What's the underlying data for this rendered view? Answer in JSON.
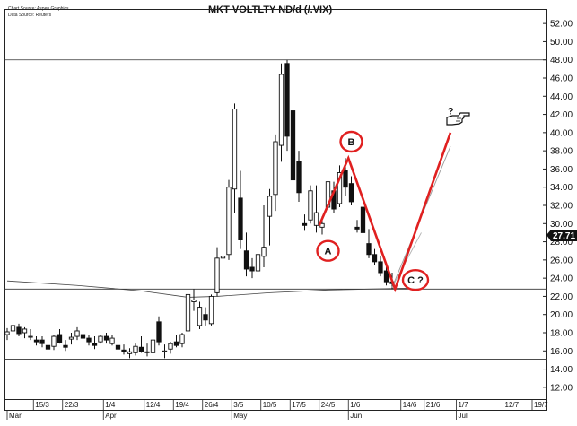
{
  "chart_data": {
    "type": "candlestick",
    "title": "MKT VOLTLTY ND/d (/.VIX)",
    "source_lines": [
      "Chart Source: Aspen Graphics",
      "Data Source: Reuters"
    ],
    "ylim": [
      11,
      53
    ],
    "y_ticks": [
      "12.00",
      "14.00",
      "16.00",
      "18.00",
      "20.00",
      "22.00",
      "24.00",
      "26.00",
      "28.00",
      "30.00",
      "32.00",
      "34.00",
      "36.00",
      "38.00",
      "40.00",
      "42.00",
      "44.00",
      "46.00",
      "48.00",
      "50.00",
      "52.00"
    ],
    "x_tick_labels": [
      "15/3",
      "22/3",
      "1/4",
      "12/4",
      "19/4",
      "26/4",
      "3/5",
      "10/5",
      "17/5",
      "24/5",
      "1/6",
      "14/6",
      "21/6",
      "1/7",
      "12/7",
      "19/7"
    ],
    "x_tick_bars": [
      4.5,
      9.5,
      16.5,
      23.5,
      28.5,
      33.5,
      38.5,
      43.5,
      48.5,
      53.5,
      58.5,
      67.5,
      71.5,
      77,
      85,
      90
    ],
    "months": [
      {
        "label": "Mar",
        "bar": 0
      },
      {
        "label": "Apr",
        "bar": 16.5
      },
      {
        "label": "May",
        "bar": 38.5
      },
      {
        "label": "Jun",
        "bar": 58.5
      },
      {
        "label": "Jul",
        "bar": 77
      }
    ],
    "horizontal_lines": [
      48.0,
      22.8,
      15.1
    ],
    "last_price": "27.71",
    "bars_span": 93,
    "candles": [
      {
        "o": 17.8,
        "h": 18.5,
        "l": 17.2,
        "c": 18.1
      },
      {
        "o": 18.2,
        "h": 19.2,
        "l": 18.0,
        "c": 18.8
      },
      {
        "o": 18.6,
        "h": 19.0,
        "l": 17.6,
        "c": 17.9
      },
      {
        "o": 18.0,
        "h": 18.6,
        "l": 17.4,
        "c": 18.4
      },
      {
        "o": 17.6,
        "h": 18.4,
        "l": 17.2,
        "c": 17.6
      },
      {
        "o": 17.2,
        "h": 17.6,
        "l": 16.6,
        "c": 17.0
      },
      {
        "o": 17.2,
        "h": 17.6,
        "l": 16.4,
        "c": 16.8
      },
      {
        "o": 16.6,
        "h": 17.2,
        "l": 16.0,
        "c": 16.2
      },
      {
        "o": 16.5,
        "h": 17.8,
        "l": 16.1,
        "c": 17.6
      },
      {
        "o": 17.8,
        "h": 18.4,
        "l": 16.8,
        "c": 16.9
      },
      {
        "o": 16.6,
        "h": 17.2,
        "l": 16.0,
        "c": 16.4
      },
      {
        "o": 17.3,
        "h": 18.0,
        "l": 16.7,
        "c": 17.5
      },
      {
        "o": 17.6,
        "h": 18.6,
        "l": 17.2,
        "c": 18.2
      },
      {
        "o": 17.8,
        "h": 18.4,
        "l": 17.2,
        "c": 17.4
      },
      {
        "o": 17.4,
        "h": 17.8,
        "l": 16.6,
        "c": 17.0
      },
      {
        "o": 16.8,
        "h": 17.6,
        "l": 16.2,
        "c": 16.6
      },
      {
        "o": 17.0,
        "h": 17.8,
        "l": 16.8,
        "c": 17.6
      },
      {
        "o": 17.6,
        "h": 18.0,
        "l": 16.8,
        "c": 17.2
      },
      {
        "o": 16.8,
        "h": 17.8,
        "l": 16.6,
        "c": 17.4
      },
      {
        "o": 16.6,
        "h": 17.0,
        "l": 15.9,
        "c": 16.2
      },
      {
        "o": 16.1,
        "h": 16.7,
        "l": 15.6,
        "c": 15.9
      },
      {
        "o": 15.7,
        "h": 16.3,
        "l": 15.2,
        "c": 15.9
      },
      {
        "o": 15.8,
        "h": 16.8,
        "l": 15.5,
        "c": 16.5
      },
      {
        "o": 16.4,
        "h": 17.6,
        "l": 15.8,
        "c": 15.9
      },
      {
        "o": 15.9,
        "h": 16.8,
        "l": 15.4,
        "c": 15.8
      },
      {
        "o": 15.8,
        "h": 17.4,
        "l": 15.6,
        "c": 17.2
      },
      {
        "o": 19.2,
        "h": 19.8,
        "l": 16.6,
        "c": 17.0
      },
      {
        "o": 16.0,
        "h": 16.7,
        "l": 15.2,
        "c": 16.0
      },
      {
        "o": 16.2,
        "h": 17.0,
        "l": 15.7,
        "c": 16.8
      },
      {
        "o": 17.0,
        "h": 17.8,
        "l": 16.4,
        "c": 16.6
      },
      {
        "o": 16.8,
        "h": 18.0,
        "l": 16.4,
        "c": 17.8
      },
      {
        "o": 18.2,
        "h": 22.4,
        "l": 18.0,
        "c": 22.2
      },
      {
        "o": 21.4,
        "h": 22.8,
        "l": 20.4,
        "c": 21.6
      },
      {
        "o": 18.8,
        "h": 21.4,
        "l": 18.4,
        "c": 20.8
      },
      {
        "o": 20.0,
        "h": 20.8,
        "l": 18.8,
        "c": 19.4
      },
      {
        "o": 19.0,
        "h": 22.2,
        "l": 18.8,
        "c": 22.0
      },
      {
        "o": 22.4,
        "h": 27.4,
        "l": 22.0,
        "c": 26.2
      },
      {
        "o": 26.2,
        "h": 30.0,
        "l": 25.4,
        "c": 26.4
      },
      {
        "o": 26.6,
        "h": 34.8,
        "l": 26.0,
        "c": 34.0
      },
      {
        "o": 33.8,
        "h": 43.2,
        "l": 31.2,
        "c": 42.6
      },
      {
        "o": 32.8,
        "h": 35.8,
        "l": 27.2,
        "c": 28.2
      },
      {
        "o": 27.0,
        "h": 29.0,
        "l": 24.2,
        "c": 25.0
      },
      {
        "o": 25.2,
        "h": 26.2,
        "l": 24.0,
        "c": 24.8
      },
      {
        "o": 24.8,
        "h": 27.2,
        "l": 24.2,
        "c": 26.6
      },
      {
        "o": 26.4,
        "h": 32.0,
        "l": 25.2,
        "c": 27.4
      },
      {
        "o": 30.8,
        "h": 33.8,
        "l": 27.6,
        "c": 33.0
      },
      {
        "o": 33.2,
        "h": 39.8,
        "l": 31.4,
        "c": 39.0
      },
      {
        "o": 38.6,
        "h": 47.6,
        "l": 36.8,
        "c": 46.4
      },
      {
        "o": 47.6,
        "h": 48.0,
        "l": 38.0,
        "c": 39.6
      },
      {
        "o": 42.4,
        "h": 43.0,
        "l": 34.0,
        "c": 34.8
      },
      {
        "o": 36.8,
        "h": 38.0,
        "l": 32.4,
        "c": 33.4
      },
      {
        "o": 30.0,
        "h": 31.0,
        "l": 29.2,
        "c": 29.8
      },
      {
        "o": 30.4,
        "h": 34.2,
        "l": 30.0,
        "c": 33.6
      },
      {
        "o": 29.8,
        "h": 34.2,
        "l": 29.0,
        "c": 31.2
      },
      {
        "o": 29.6,
        "h": 30.8,
        "l": 28.8,
        "c": 30.0
      },
      {
        "o": 31.8,
        "h": 35.4,
        "l": 31.0,
        "c": 34.6
      },
      {
        "o": 33.6,
        "h": 34.6,
        "l": 31.2,
        "c": 31.6
      },
      {
        "o": 32.2,
        "h": 36.4,
        "l": 31.8,
        "c": 35.6
      },
      {
        "o": 35.8,
        "h": 37.2,
        "l": 33.0,
        "c": 34.0
      },
      {
        "o": 34.4,
        "h": 35.2,
        "l": 32.0,
        "c": 32.4
      },
      {
        "o": 29.6,
        "h": 30.4,
        "l": 29.0,
        "c": 29.4
      },
      {
        "o": 31.8,
        "h": 32.4,
        "l": 28.2,
        "c": 29.0
      },
      {
        "o": 27.8,
        "h": 29.4,
        "l": 26.2,
        "c": 26.6
      },
      {
        "o": 26.6,
        "h": 27.2,
        "l": 25.4,
        "c": 25.8
      },
      {
        "o": 25.8,
        "h": 26.4,
        "l": 24.2,
        "c": 24.6
      },
      {
        "o": 24.8,
        "h": 25.4,
        "l": 23.2,
        "c": 23.6
      },
      {
        "o": 23.6,
        "h": 24.6,
        "l": 22.8,
        "c": 23.4
      }
    ],
    "moving_average": [
      {
        "bar": 0,
        "y": 23.7
      },
      {
        "bar": 12,
        "y": 23.2
      },
      {
        "bar": 23,
        "y": 22.6
      },
      {
        "bar": 31,
        "y": 21.9
      },
      {
        "bar": 36,
        "y": 22.0
      },
      {
        "bar": 45,
        "y": 22.4
      },
      {
        "bar": 55,
        "y": 22.7
      },
      {
        "bar": 62,
        "y": 22.8
      },
      {
        "bar": 69,
        "y": 22.9
      }
    ],
    "extra_lines": [
      {
        "from": {
          "bar": 66,
          "y": 23.0
        },
        "to": {
          "bar": 71,
          "y": 29.0
        },
        "color": "#b0b0b0"
      },
      {
        "from": {
          "bar": 66,
          "y": 23.0
        },
        "to": {
          "bar": 76,
          "y": 38.5
        },
        "color": "#9a9a9a"
      }
    ],
    "annotations": {
      "color": "#e02020",
      "wave_line": [
        {
          "bar": 53.5,
          "y": 29.8
        },
        {
          "bar": 58.5,
          "y": 37.2
        },
        {
          "bar": 66.5,
          "y": 22.8
        },
        {
          "bar": 76,
          "y": 40.0
        }
      ],
      "circles": [
        {
          "label": "A",
          "bar": 55,
          "y": 27.0
        },
        {
          "label": "B",
          "bar": 59,
          "y": 39.0
        },
        {
          "label": "C ?",
          "bar": 70,
          "y": 23.8
        }
      ],
      "question": {
        "text": "?",
        "bar": 75.5,
        "y": 42.0
      }
    }
  }
}
